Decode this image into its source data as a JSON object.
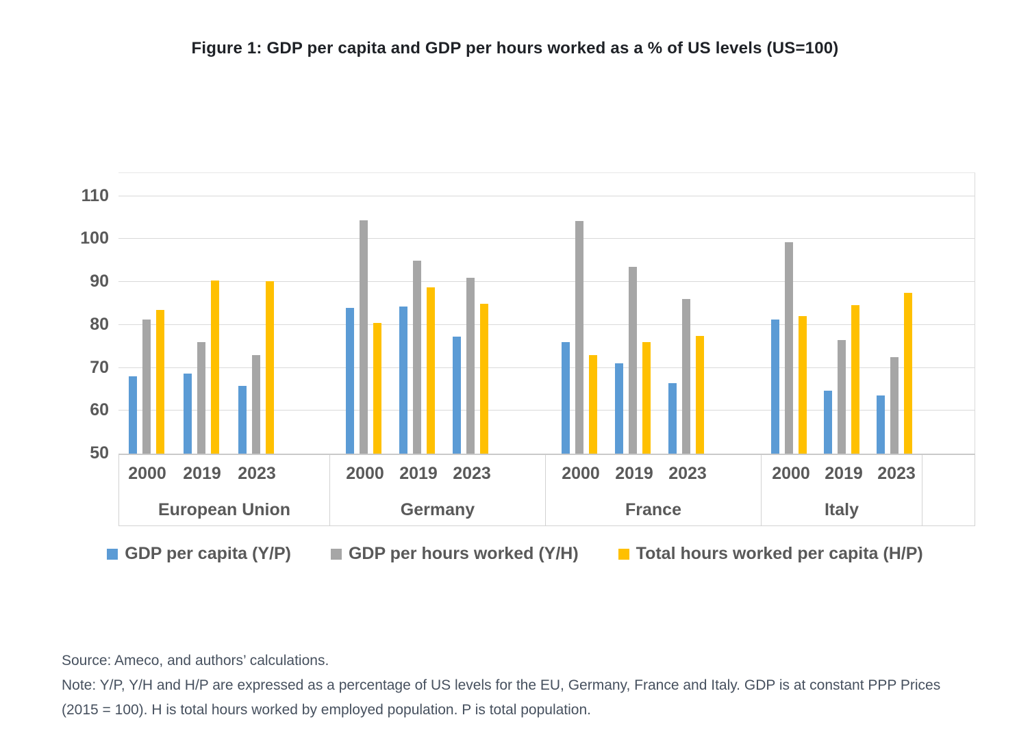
{
  "figure": {
    "title": "Figure 1: GDP per capita and GDP per hours worked as a % of US levels (US=100)",
    "source": "Source: Ameco, and authors’ calculations.",
    "note": "Note: Y/P, Y/H and H/P are expressed as a percentage of US levels for the EU, Germany, France and Italy. GDP is at constant PPP Prices (2015 = 100). H is total hours worked by employed population. P is total population."
  },
  "chart_data": {
    "type": "bar",
    "title": "Figure 1: GDP per capita and GDP per hours worked as a % of US levels (US=100)",
    "groups": [
      "European Union",
      "Germany",
      "France",
      "Italy"
    ],
    "years": [
      "2000",
      "2019",
      "2023"
    ],
    "series": [
      {
        "name": "GDP per capita (Y/P)",
        "color": "#5B9BD5",
        "values": [
          [
            68.0,
            68.7,
            65.8
          ],
          [
            84.0,
            84.2,
            77.2
          ],
          [
            76.0,
            71.0,
            66.5
          ],
          [
            81.3,
            64.7,
            63.5
          ]
        ]
      },
      {
        "name": "GDP per hours worked (Y/H)",
        "color": "#A6A6A6",
        "values": [
          [
            81.3,
            76.0,
            73.0
          ],
          [
            104.3,
            95.0,
            91.0
          ],
          [
            104.2,
            93.5,
            86.0
          ],
          [
            99.3,
            76.5,
            72.5
          ]
        ]
      },
      {
        "name": "Total hours worked per capita (H/P)",
        "color": "#FFC000",
        "values": [
          [
            83.5,
            90.4,
            90.1
          ],
          [
            80.4,
            88.7,
            84.9
          ],
          [
            73.0,
            76.0,
            77.4
          ],
          [
            82.0,
            84.6,
            87.5
          ]
        ]
      }
    ],
    "y_axis": {
      "min": 50,
      "max": 110,
      "step": 10,
      "ticks": [
        110,
        100,
        90,
        80,
        70,
        60,
        50
      ]
    },
    "ylim": [
      50,
      110
    ],
    "grid": true,
    "legend_position": "bottom",
    "baseline_value": 50
  }
}
